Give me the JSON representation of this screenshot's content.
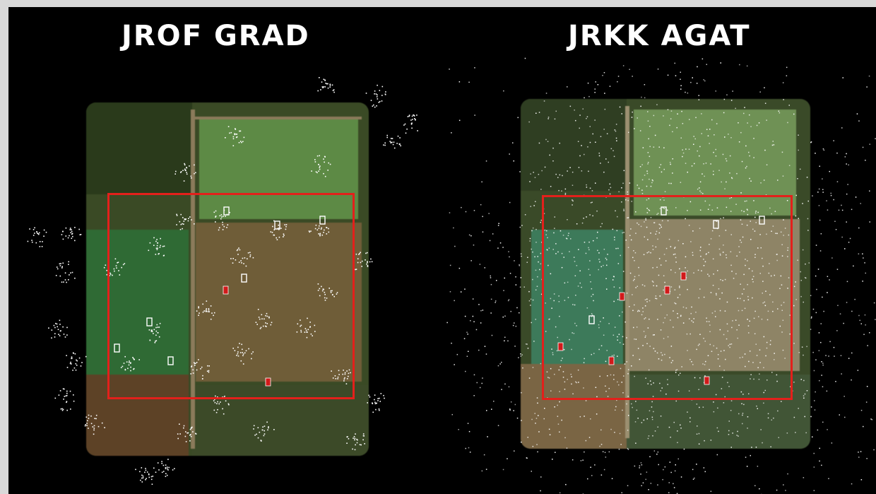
{
  "panels": [
    {
      "label": "JROF GRAD"
    },
    {
      "label": "JRKK AGAT"
    }
  ],
  "colors": {
    "background": "#000000",
    "roi_box": "#e3201b",
    "points": "#ffffff",
    "marker_inlier": "#ffffff",
    "marker_outlier": "#d11a1a",
    "grass": "#4e7a3a",
    "soil": "#6b5733",
    "trees": "#2d3d1e"
  }
}
